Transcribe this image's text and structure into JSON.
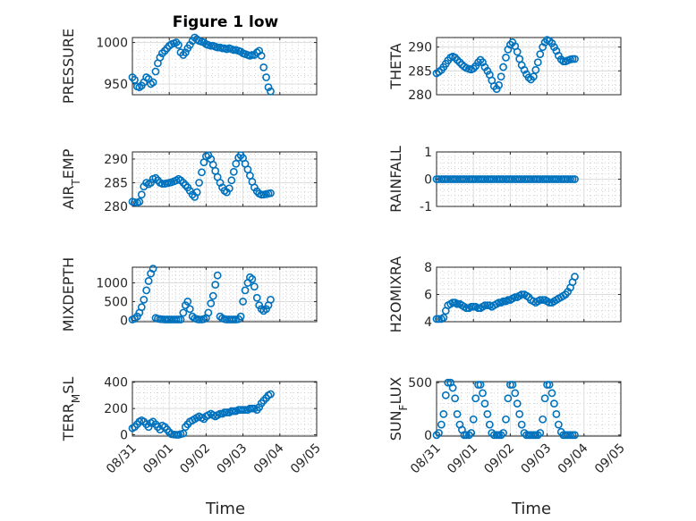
{
  "figure": {
    "title": "Figure 1 low",
    "xlabel": "Time"
  },
  "x_ticks": [
    "08/31",
    "09/01",
    "09/02",
    "09/03",
    "09/04",
    "09/05"
  ],
  "colors": {
    "series": "#0072BD",
    "axis": "#262626",
    "grid": "#dcdcdc"
  },
  "chart_data": [
    {
      "type": "scatter",
      "id": "pressure",
      "ylabel": "PRESSURE",
      "ylim": [
        937,
        1006
      ],
      "yticks": [
        950,
        1000
      ],
      "x": [
        0.0,
        0.06,
        0.13,
        0.19,
        0.25,
        0.31,
        0.38,
        0.44,
        0.5,
        0.56,
        0.63,
        0.69,
        0.75,
        0.81,
        0.88,
        0.94,
        1.0,
        1.06,
        1.13,
        1.19,
        1.25,
        1.31,
        1.38,
        1.44,
        1.5,
        1.56,
        1.63,
        1.69,
        1.75,
        1.81,
        1.88,
        1.94,
        2.0,
        2.06,
        2.13,
        2.19,
        2.25,
        2.31,
        2.38,
        2.44,
        2.5,
        2.56,
        2.63,
        2.69,
        2.75,
        2.81,
        2.88,
        2.94,
        3.0,
        3.06,
        3.13,
        3.19,
        3.25,
        3.31,
        3.38,
        3.44,
        3.5,
        3.56,
        3.63,
        3.69,
        3.75
      ],
      "y": [
        958,
        955,
        947,
        946,
        948,
        952,
        958,
        956,
        950,
        952,
        965,
        975,
        982,
        987,
        990,
        993,
        996,
        998,
        999,
        1000,
        997,
        988,
        985,
        988,
        993,
        997,
        1002,
        1006,
        1004,
        1002,
        1001,
        1000,
        998,
        997,
        996,
        996,
        995,
        994,
        994,
        993,
        993,
        992,
        993,
        992,
        991,
        991,
        990,
        989,
        987,
        986,
        985,
        984,
        985,
        985,
        988,
        990,
        984,
        970,
        958,
        946,
        941
      ]
    },
    {
      "type": "scatter",
      "id": "theta",
      "ylabel": "THETA",
      "ylim": [
        280,
        292
      ],
      "yticks": [
        280,
        285,
        290
      ],
      "x": [
        0.0,
        0.06,
        0.13,
        0.19,
        0.25,
        0.31,
        0.38,
        0.44,
        0.5,
        0.56,
        0.63,
        0.69,
        0.75,
        0.81,
        0.88,
        0.94,
        1.0,
        1.06,
        1.13,
        1.19,
        1.25,
        1.31,
        1.38,
        1.44,
        1.5,
        1.56,
        1.63,
        1.69,
        1.75,
        1.81,
        1.88,
        1.94,
        2.0,
        2.06,
        2.13,
        2.19,
        2.25,
        2.31,
        2.38,
        2.44,
        2.5,
        2.56,
        2.63,
        2.69,
        2.75,
        2.81,
        2.88,
        2.94,
        3.0,
        3.06,
        3.13,
        3.19,
        3.25,
        3.31,
        3.38,
        3.44,
        3.5,
        3.56,
        3.63,
        3.69,
        3.75
      ],
      "y": [
        284.5,
        284.8,
        285.2,
        285.8,
        286.5,
        287.2,
        287.8,
        288.0,
        287.8,
        287.3,
        286.8,
        286.3,
        285.9,
        285.6,
        285.4,
        285.3,
        285.5,
        286.0,
        286.8,
        287.3,
        286.8,
        285.8,
        285.0,
        284.2,
        283.0,
        281.8,
        281.2,
        282.0,
        283.8,
        285.8,
        287.8,
        289.5,
        290.5,
        291.0,
        290.2,
        289.0,
        287.5,
        286.2,
        285.2,
        284.3,
        283.6,
        283.2,
        283.8,
        285.2,
        286.8,
        288.5,
        290.0,
        291.0,
        291.5,
        291.3,
        290.8,
        290.0,
        289.2,
        288.2,
        287.4,
        287.0,
        287.0,
        287.2,
        287.4,
        287.5,
        287.5
      ]
    },
    {
      "type": "scatter",
      "id": "air_temp",
      "ylabel": "AIR_TEMP",
      "ylim": [
        280,
        291.5
      ],
      "yticks": [
        280,
        285,
        290
      ],
      "x": [
        0.0,
        0.06,
        0.13,
        0.19,
        0.25,
        0.31,
        0.38,
        0.44,
        0.5,
        0.56,
        0.63,
        0.69,
        0.75,
        0.81,
        0.88,
        0.94,
        1.0,
        1.06,
        1.13,
        1.19,
        1.25,
        1.31,
        1.38,
        1.44,
        1.5,
        1.56,
        1.63,
        1.69,
        1.75,
        1.81,
        1.88,
        1.94,
        2.0,
        2.06,
        2.13,
        2.19,
        2.25,
        2.31,
        2.38,
        2.44,
        2.5,
        2.56,
        2.63,
        2.69,
        2.75,
        2.81,
        2.88,
        2.94,
        3.0,
        3.06,
        3.13,
        3.19,
        3.25,
        3.31,
        3.38,
        3.44,
        3.5,
        3.56,
        3.63,
        3.69,
        3.75
      ],
      "y": [
        281.0,
        280.9,
        280.8,
        281.0,
        282.5,
        284.2,
        285.0,
        284.7,
        285.0,
        285.8,
        286.0,
        285.5,
        285.0,
        284.8,
        284.8,
        284.9,
        285.0,
        285.1,
        285.3,
        285.5,
        285.8,
        285.5,
        285.0,
        284.5,
        284.0,
        283.3,
        282.5,
        282.0,
        283.0,
        285.0,
        287.2,
        289.3,
        290.6,
        290.8,
        290.0,
        288.8,
        287.5,
        286.2,
        285.0,
        284.0,
        283.3,
        283.0,
        283.8,
        285.5,
        287.3,
        289.0,
        290.3,
        290.8,
        290.2,
        289.0,
        287.8,
        286.5,
        285.2,
        284.0,
        283.2,
        282.7,
        282.5,
        282.5,
        282.6,
        282.7,
        282.8
      ]
    },
    {
      "type": "scatter",
      "id": "rainfall",
      "ylabel": "RAINFALL",
      "ylim": [
        -1,
        1
      ],
      "yticks": [
        -1,
        0,
        1
      ],
      "x": [
        0.0,
        0.06,
        0.13,
        0.19,
        0.25,
        0.31,
        0.38,
        0.44,
        0.5,
        0.56,
        0.63,
        0.69,
        0.75,
        0.81,
        0.88,
        0.94,
        1.0,
        1.06,
        1.13,
        1.19,
        1.25,
        1.31,
        1.38,
        1.44,
        1.5,
        1.56,
        1.63,
        1.69,
        1.75,
        1.81,
        1.88,
        1.94,
        2.0,
        2.06,
        2.13,
        2.19,
        2.25,
        2.31,
        2.38,
        2.44,
        2.5,
        2.56,
        2.63,
        2.69,
        2.75,
        2.81,
        2.88,
        2.94,
        3.0,
        3.06,
        3.13,
        3.19,
        3.25,
        3.31,
        3.38,
        3.44,
        3.5,
        3.56,
        3.63,
        3.69,
        3.75
      ],
      "y": [
        0,
        0,
        0,
        0,
        0,
        0,
        0,
        0,
        0,
        0,
        0,
        0,
        0,
        0,
        0,
        0,
        0,
        0,
        0,
        0,
        0,
        0,
        0,
        0,
        0,
        0,
        0,
        0,
        0,
        0,
        0,
        0,
        0,
        0,
        0,
        0,
        0,
        0,
        0,
        0,
        0,
        0,
        0,
        0,
        0,
        0,
        0,
        0,
        0,
        0,
        0,
        0,
        0,
        0,
        0,
        0,
        0,
        0,
        0,
        0,
        0
      ]
    },
    {
      "type": "scatter",
      "id": "mixdepth",
      "ylabel": "MIXDEPTH",
      "ylim": [
        -40,
        1420
      ],
      "yticks": [
        0,
        500,
        1000
      ],
      "x": [
        0.0,
        0.06,
        0.13,
        0.19,
        0.25,
        0.31,
        0.38,
        0.44,
        0.5,
        0.56,
        0.63,
        0.69,
        0.75,
        0.81,
        0.88,
        0.94,
        1.0,
        1.06,
        1.13,
        1.19,
        1.25,
        1.31,
        1.38,
        1.44,
        1.5,
        1.56,
        1.63,
        1.69,
        1.75,
        1.81,
        1.88,
        1.94,
        2.0,
        2.06,
        2.13,
        2.19,
        2.25,
        2.31,
        2.38,
        2.44,
        2.5,
        2.56,
        2.63,
        2.69,
        2.75,
        2.81,
        2.88,
        2.94,
        3.0,
        3.06,
        3.13,
        3.19,
        3.25,
        3.31,
        3.38,
        3.44,
        3.5,
        3.56,
        3.63,
        3.69,
        3.75
      ],
      "y": [
        20,
        40,
        100,
        200,
        350,
        550,
        800,
        1050,
        1250,
        1380,
        60,
        40,
        30,
        25,
        20,
        20,
        20,
        20,
        20,
        20,
        20,
        20,
        200,
        400,
        500,
        300,
        100,
        50,
        30,
        20,
        20,
        30,
        60,
        200,
        450,
        650,
        950,
        1200,
        100,
        50,
        30,
        20,
        20,
        20,
        20,
        20,
        30,
        100,
        500,
        800,
        1000,
        1150,
        1100,
        900,
        600,
        400,
        300,
        250,
        300,
        400,
        550
      ]
    },
    {
      "type": "scatter",
      "id": "h2omixra",
      "ylabel": "H2OMIXRA",
      "ylim": [
        4,
        8
      ],
      "yticks": [
        4,
        6,
        8
      ],
      "x": [
        0.0,
        0.06,
        0.13,
        0.19,
        0.25,
        0.31,
        0.38,
        0.44,
        0.5,
        0.56,
        0.63,
        0.69,
        0.75,
        0.81,
        0.88,
        0.94,
        1.0,
        1.06,
        1.13,
        1.19,
        1.25,
        1.31,
        1.38,
        1.44,
        1.5,
        1.56,
        1.63,
        1.69,
        1.75,
        1.81,
        1.88,
        1.94,
        2.0,
        2.06,
        2.13,
        2.19,
        2.25,
        2.31,
        2.38,
        2.44,
        2.5,
        2.56,
        2.63,
        2.69,
        2.75,
        2.81,
        2.88,
        2.94,
        3.0,
        3.06,
        3.13,
        3.19,
        3.25,
        3.31,
        3.38,
        3.44,
        3.5,
        3.56,
        3.63,
        3.69,
        3.75
      ],
      "y": [
        4.2,
        4.2,
        4.2,
        4.3,
        4.8,
        5.2,
        5.3,
        5.4,
        5.4,
        5.3,
        5.3,
        5.2,
        5.1,
        5.0,
        5.0,
        5.1,
        5.1,
        5.1,
        5.0,
        5.0,
        5.1,
        5.2,
        5.2,
        5.2,
        5.1,
        5.2,
        5.3,
        5.4,
        5.4,
        5.5,
        5.5,
        5.6,
        5.6,
        5.7,
        5.8,
        5.8,
        5.9,
        6.0,
        6.0,
        5.9,
        5.8,
        5.6,
        5.5,
        5.4,
        5.5,
        5.6,
        5.6,
        5.6,
        5.5,
        5.4,
        5.4,
        5.5,
        5.6,
        5.7,
        5.8,
        5.9,
        6.0,
        6.2,
        6.5,
        6.9,
        7.3
      ]
    },
    {
      "type": "scatter",
      "id": "terr_msl",
      "ylabel": "TERR_MSL",
      "ylim": [
        -10,
        405
      ],
      "yticks": [
        0,
        200,
        400
      ],
      "x": [
        0.0,
        0.06,
        0.13,
        0.19,
        0.25,
        0.31,
        0.38,
        0.44,
        0.5,
        0.56,
        0.63,
        0.69,
        0.75,
        0.81,
        0.88,
        0.94,
        1.0,
        1.06,
        1.13,
        1.19,
        1.25,
        1.31,
        1.38,
        1.44,
        1.5,
        1.56,
        1.63,
        1.69,
        1.75,
        1.81,
        1.88,
        1.94,
        2.0,
        2.06,
        2.13,
        2.19,
        2.25,
        2.31,
        2.38,
        2.44,
        2.5,
        2.56,
        2.63,
        2.69,
        2.75,
        2.81,
        2.88,
        2.94,
        3.0,
        3.06,
        3.13,
        3.19,
        3.25,
        3.31,
        3.38,
        3.44,
        3.5,
        3.56,
        3.63,
        3.69,
        3.75
      ],
      "y": [
        50,
        60,
        80,
        100,
        110,
        100,
        80,
        60,
        90,
        100,
        80,
        60,
        40,
        70,
        60,
        40,
        20,
        5,
        2,
        0,
        0,
        5,
        10,
        60,
        80,
        100,
        110,
        120,
        130,
        140,
        130,
        120,
        140,
        150,
        160,
        150,
        140,
        150,
        160,
        160,
        170,
        170,
        170,
        180,
        180,
        180,
        190,
        190,
        190,
        190,
        190,
        200,
        200,
        200,
        190,
        210,
        240,
        260,
        280,
        300,
        310
      ]
    },
    {
      "type": "scatter",
      "id": "sun_flux",
      "ylabel": "SUN_FLUX",
      "ylim": [
        -10,
        510
      ],
      "yticks": [
        0,
        500
      ],
      "x": [
        0.0,
        0.06,
        0.13,
        0.19,
        0.25,
        0.31,
        0.38,
        0.44,
        0.5,
        0.56,
        0.63,
        0.69,
        0.75,
        0.81,
        0.88,
        0.94,
        1.0,
        1.06,
        1.13,
        1.19,
        1.25,
        1.31,
        1.38,
        1.44,
        1.5,
        1.56,
        1.63,
        1.69,
        1.75,
        1.81,
        1.88,
        1.94,
        2.0,
        2.06,
        2.13,
        2.19,
        2.25,
        2.31,
        2.38,
        2.44,
        2.5,
        2.56,
        2.63,
        2.69,
        2.75,
        2.81,
        2.88,
        2.94,
        3.0,
        3.06,
        3.13,
        3.19,
        3.25,
        3.31,
        3.38,
        3.44,
        3.5,
        3.56,
        3.63,
        3.69,
        3.75
      ],
      "y": [
        0,
        20,
        100,
        200,
        380,
        500,
        500,
        450,
        350,
        200,
        100,
        50,
        0,
        0,
        0,
        20,
        150,
        350,
        480,
        480,
        400,
        300,
        200,
        100,
        20,
        0,
        0,
        0,
        0,
        20,
        150,
        350,
        480,
        480,
        400,
        300,
        200,
        100,
        20,
        0,
        0,
        0,
        0,
        0,
        0,
        20,
        150,
        350,
        480,
        480,
        400,
        300,
        200,
        100,
        30,
        0,
        0,
        0,
        0,
        0,
        0
      ]
    }
  ]
}
